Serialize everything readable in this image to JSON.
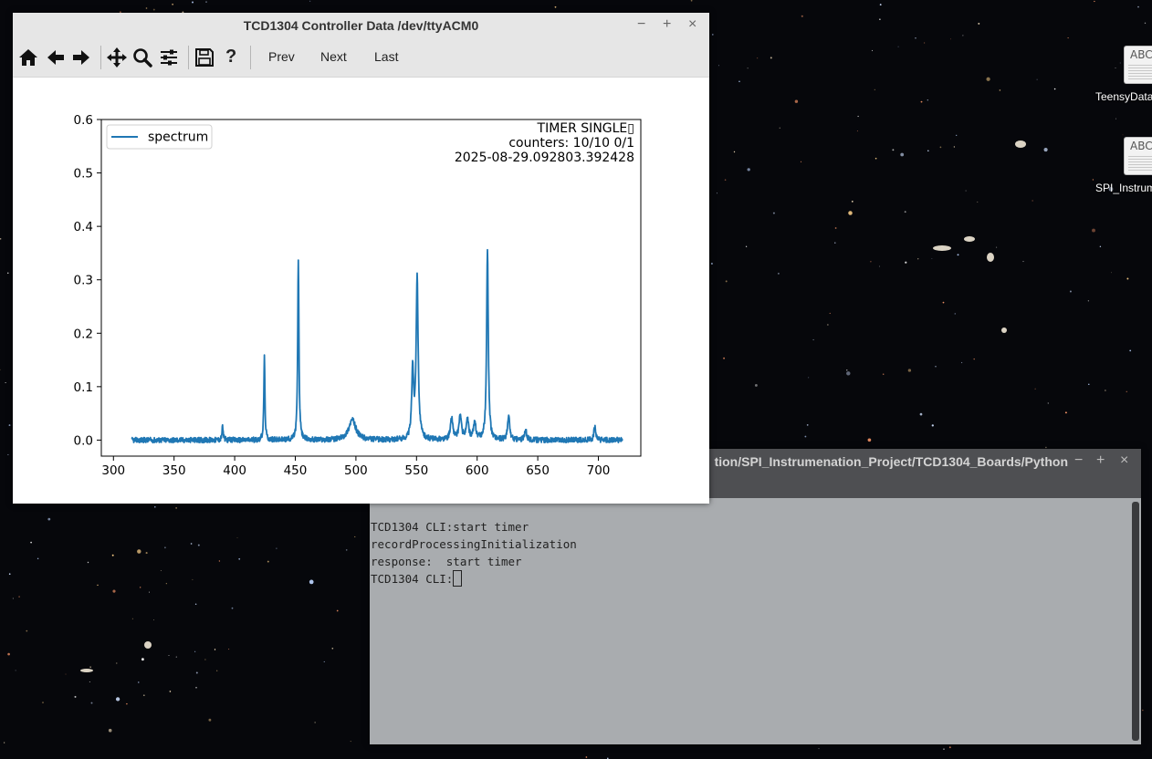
{
  "plot_window": {
    "title": "TCD1304 Controller Data /dev/ttyACM0",
    "minimize_symbol": "−",
    "maximize_symbol": "+",
    "close_symbol": "×",
    "toolbar": {
      "icons": [
        "home-icon",
        "back-arrow-icon",
        "forward-arrow-icon",
        "pan-move-icon",
        "zoom-magnifier-icon",
        "subplots-config-icon",
        "save-floppy-icon",
        "help-question-icon"
      ],
      "help_label": "?",
      "prev_label": "Prev",
      "next_label": "Next",
      "last_label": "Last"
    },
    "annotation": {
      "line1": "TIMER SINGLE▯",
      "line2": "counters: 10/10 0/1",
      "line3": "2025-08-29.092803.392428"
    }
  },
  "terminal": {
    "title": "tion/SPI_Instrumenation_Project/TCD1304_Boards/Python",
    "minimize_symbol": "−",
    "maximize_symbol": "+",
    "close_symbol": "×",
    "lines": [
      "TCD1304 CLI:start timer",
      "recordProcessingInitialization",
      "response:  start timer"
    ],
    "prompt": "TCD1304 CLI:"
  },
  "desktop": {
    "icons": [
      {
        "label": "TeensyData",
        "glyph": "ABC"
      },
      {
        "label": "SPI_Instrum",
        "glyph": "ABC"
      }
    ]
  },
  "chart_data": {
    "type": "line",
    "legend": {
      "entries": [
        "spectrum"
      ],
      "placement": "top-left"
    },
    "series": [
      {
        "name": "spectrum",
        "color": "#1f77b4"
      }
    ],
    "xlim": [
      315,
      720
    ],
    "ylim": [
      -0.03,
      0.6
    ],
    "xticks": [
      300,
      350,
      400,
      450,
      500,
      550,
      600,
      650,
      700
    ],
    "yticks": [
      0.0,
      0.1,
      0.2,
      0.3,
      0.4,
      0.5,
      0.6
    ],
    "grid": false,
    "baseline": 0.0,
    "noise_amplitude": 0.005,
    "peaks": [
      {
        "x": 390,
        "height": 0.025,
        "width": 0.6
      },
      {
        "x": 424.5,
        "height": 0.16,
        "width": 0.5
      },
      {
        "x": 452.5,
        "height": 0.34,
        "width": 0.6
      },
      {
        "x": 497,
        "height": 0.038,
        "width": 3.5
      },
      {
        "x": 546.8,
        "height": 0.13,
        "width": 0.9
      },
      {
        "x": 550.5,
        "height": 0.3,
        "width": 1.0
      },
      {
        "x": 579,
        "height": 0.04,
        "width": 1.2
      },
      {
        "x": 586,
        "height": 0.045,
        "width": 1.2
      },
      {
        "x": 592,
        "height": 0.035,
        "width": 1.2
      },
      {
        "x": 598,
        "height": 0.03,
        "width": 1.2
      },
      {
        "x": 608.5,
        "height": 0.36,
        "width": 0.8
      },
      {
        "x": 626,
        "height": 0.045,
        "width": 1.0
      },
      {
        "x": 640,
        "height": 0.018,
        "width": 1.0
      },
      {
        "x": 697,
        "height": 0.025,
        "width": 0.8
      }
    ]
  }
}
